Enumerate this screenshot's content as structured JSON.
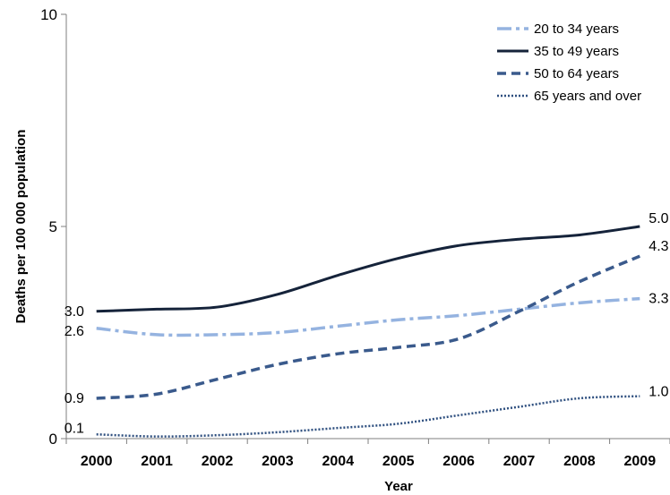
{
  "chart_data": {
    "type": "line",
    "title": "",
    "xlabel": "Year",
    "ylabel": "Deaths per 100 000 population",
    "ylim": [
      0,
      10
    ],
    "yticks": [
      "0",
      "5",
      "10"
    ],
    "x": [
      "2000",
      "2001",
      "2002",
      "2003",
      "2004",
      "2005",
      "2006",
      "2007",
      "2008",
      "2009"
    ],
    "grid": false,
    "legend_position": "top-right",
    "series": [
      {
        "name": "20 to 34 years",
        "color": "#95b3e0",
        "style": "dash-dot",
        "values": [
          2.6,
          2.45,
          2.45,
          2.5,
          2.65,
          2.8,
          2.9,
          3.05,
          3.2,
          3.3
        ],
        "start_label": "2.6",
        "end_label": "3.3"
      },
      {
        "name": "35 to 49 years",
        "color": "#15233a",
        "style": "solid",
        "values": [
          3.0,
          3.05,
          3.1,
          3.4,
          3.85,
          4.25,
          4.55,
          4.7,
          4.8,
          5.0
        ],
        "start_label": "3.0",
        "end_label": "5.0"
      },
      {
        "name": "50 to 64 years",
        "color": "#3a5a8c",
        "style": "dashed",
        "values": [
          0.95,
          1.05,
          1.4,
          1.75,
          2.0,
          2.15,
          2.35,
          3.0,
          3.7,
          4.3
        ],
        "start_label": "0.9",
        "end_label": "4.3"
      },
      {
        "name": "65 years and over",
        "color": "#2e4f7f",
        "style": "dotted",
        "values": [
          0.1,
          0.05,
          0.08,
          0.15,
          0.25,
          0.35,
          0.55,
          0.75,
          0.95,
          1.0
        ],
        "start_label": "0.1",
        "end_label": "1.0"
      }
    ]
  }
}
